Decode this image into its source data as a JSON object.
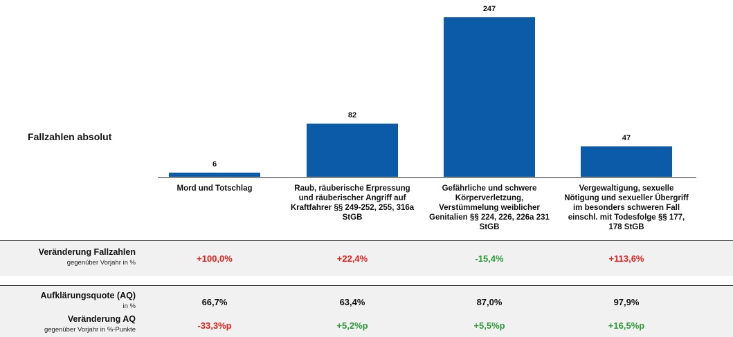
{
  "chart_data": {
    "type": "bar",
    "title": "Fallzahlen absolut",
    "categories": [
      "Mord und Totschlag",
      "Raub, räuberische Erpressung und räuberischer Angriff auf Kraftfahrer §§ 249-252, 255, 316a StGB",
      "Gefährliche und schwere Körperverletzung, Verstümmelung weiblicher Genitalien §§ 224, 226, 226a 231 StGB",
      "Vergewaltigung, sexuelle Nötigung und sexueller Übergriff im besonders schweren Fall einschl. mit Todesfolge §§ 177, 178 StGB"
    ],
    "values": [
      6,
      82,
      247,
      47
    ],
    "color": "#0b5ba8"
  },
  "table": {
    "rows": [
      {
        "label": "Veränderung Fallzahlen",
        "sublabel": "gegenüber Vorjahr in %",
        "cells": [
          "+100,0%",
          "+22,4%",
          "-15,4%",
          "+113,6%"
        ],
        "colors": [
          "#e8201a",
          "#e8201a",
          "#2e9a3a",
          "#e8201a"
        ]
      },
      {
        "label": "Aufklärungsquote (AQ)",
        "sublabel": "in %",
        "cells": [
          "66,7%",
          "63,4%",
          "87,0%",
          "97,9%"
        ],
        "colors": [
          "#111111",
          "#111111",
          "#111111",
          "#111111"
        ]
      },
      {
        "label": "Veränderung AQ",
        "sublabel": "gegenüber Vorjahr in %-Punkte",
        "cells": [
          "-33,3%p",
          "+5,2%p",
          "+5,5%p",
          "+16,5%p"
        ],
        "colors": [
          "#e8201a",
          "#2e9a3a",
          "#2e9a3a",
          "#2e9a3a"
        ]
      }
    ]
  }
}
